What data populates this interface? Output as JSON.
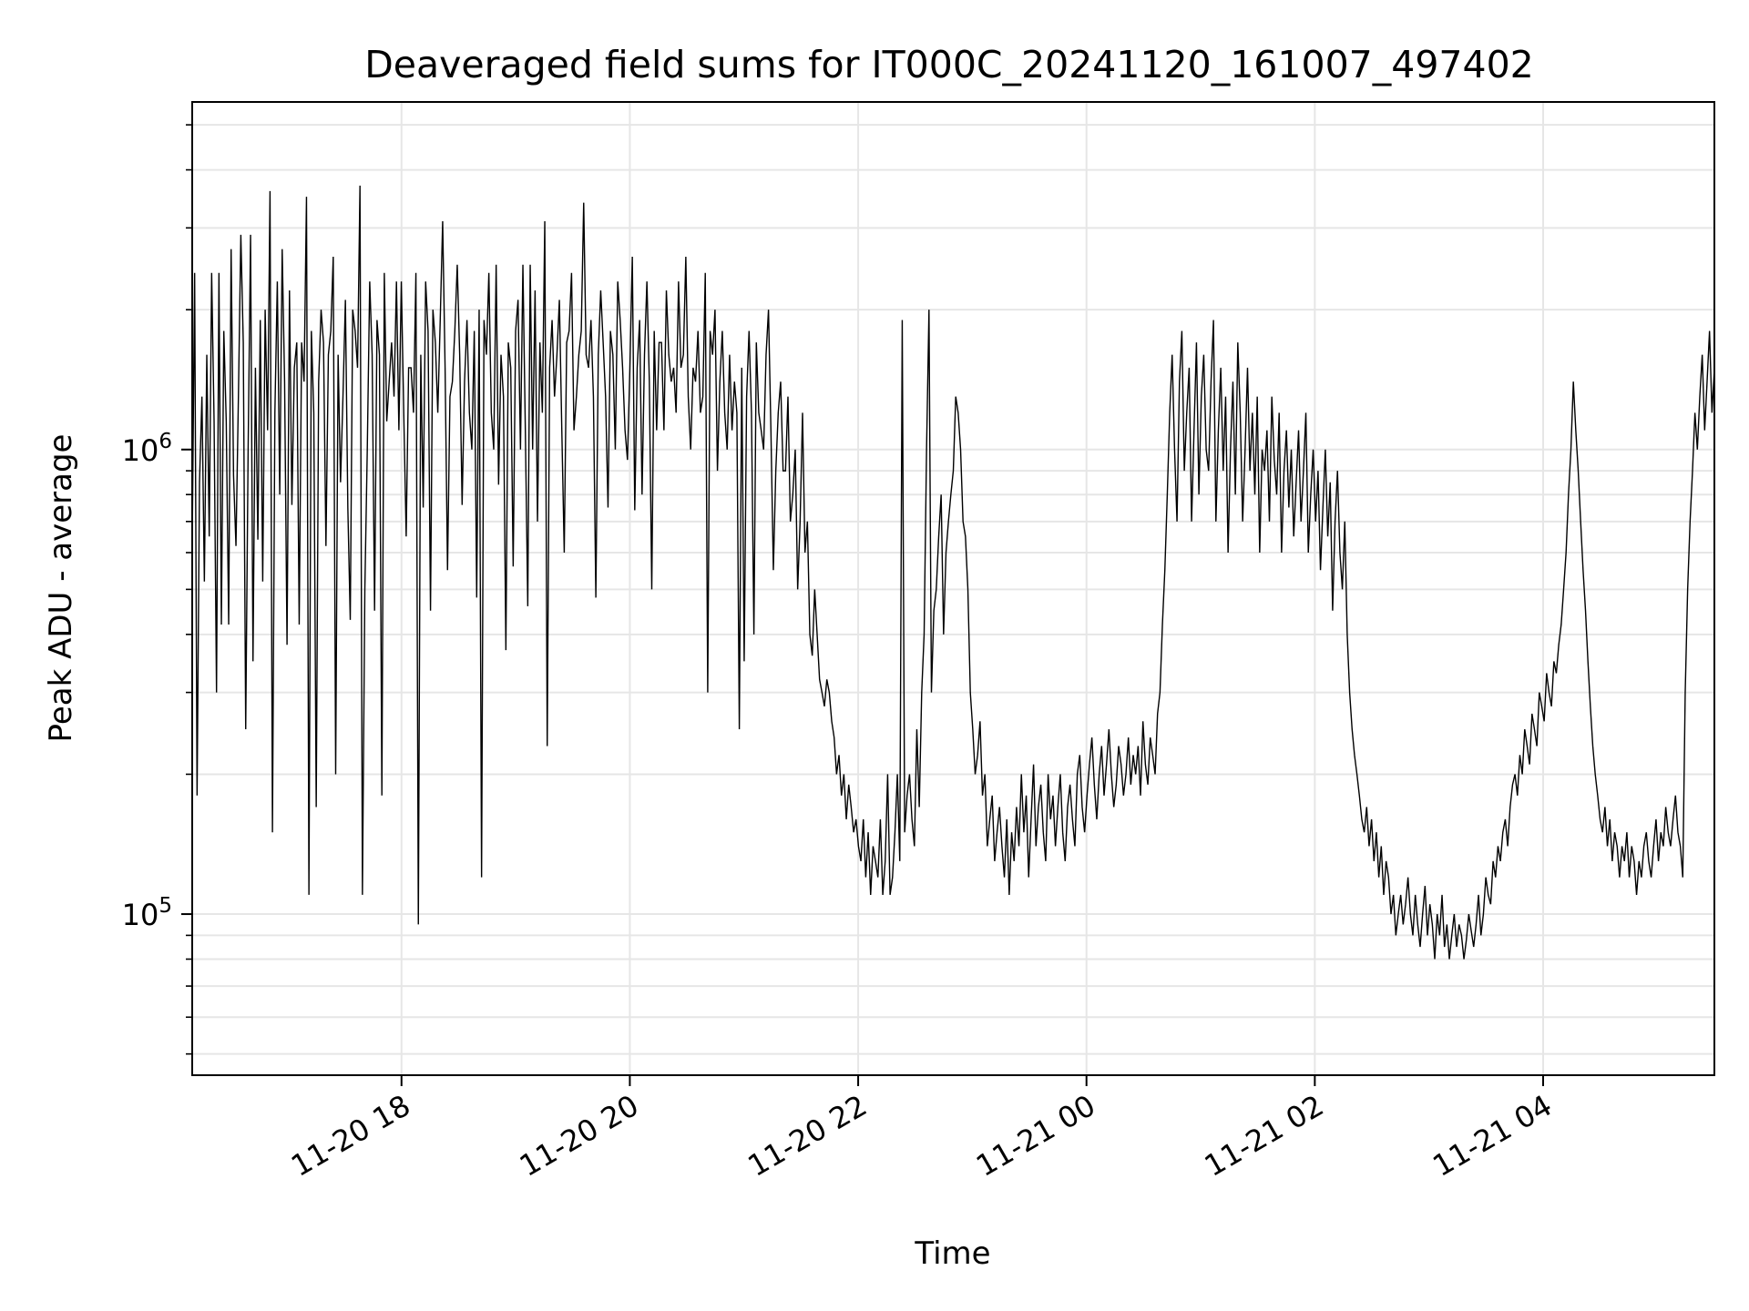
{
  "chart_data": {
    "type": "line",
    "title": "Deaveraged field sums for IT000C_20241120_161007_497402",
    "xlabel": "Time",
    "ylabel": "Peak ADU - average",
    "yscale": "log",
    "grid": true,
    "line_color": "#000000",
    "grid_color": "#e6e6e6",
    "xlim": [
      "2024-11-20 16:10",
      "2024-11-21 05:30"
    ],
    "ylim": [
      45000,
      5600000
    ],
    "x_ticks": [
      {
        "value": "2024-11-20 18:00",
        "label": "11-20 18"
      },
      {
        "value": "2024-11-20 20:00",
        "label": "11-20 20"
      },
      {
        "value": "2024-11-20 22:00",
        "label": "11-20 22"
      },
      {
        "value": "2024-11-21 00:00",
        "label": "11-21 00"
      },
      {
        "value": "2024-11-21 02:00",
        "label": "11-21 02"
      },
      {
        "value": "2024-11-21 04:00",
        "label": "11-21 04"
      }
    ],
    "y_ticks": [
      {
        "value": 100000,
        "base": "10",
        "exp": "5"
      },
      {
        "value": 1000000,
        "base": "10",
        "exp": "6"
      }
    ],
    "series": [
      {
        "x_start": "2024-11-20 16:10",
        "x_end": "2024-11-21 05:30",
        "values": [
          620000,
          2400000,
          180000,
          850000,
          1300000,
          520000,
          1600000,
          650000,
          2400000,
          1150000,
          300000,
          2400000,
          420000,
          1800000,
          1150000,
          420000,
          2700000,
          880000,
          620000,
          1300000,
          2900000,
          1700000,
          250000,
          1000000,
          2900000,
          350000,
          1500000,
          640000,
          1900000,
          520000,
          2000000,
          1100000,
          3600000,
          150000,
          1200000,
          2300000,
          800000,
          2700000,
          1400000,
          380000,
          2200000,
          760000,
          1500000,
          1700000,
          420000,
          1700000,
          1400000,
          3500000,
          110000,
          1800000,
          1200000,
          170000,
          1400000,
          2000000,
          1700000,
          620000,
          1600000,
          1800000,
          2600000,
          200000,
          1600000,
          850000,
          1300000,
          2100000,
          750000,
          430000,
          2000000,
          1800000,
          1500000,
          3700000,
          110000,
          500000,
          1000000,
          2300000,
          1600000,
          450000,
          1900000,
          1600000,
          180000,
          2400000,
          1150000,
          1400000,
          1700000,
          1300000,
          2300000,
          1100000,
          2300000,
          1200000,
          650000,
          1500000,
          1500000,
          1200000,
          2400000,
          95000,
          1600000,
          750000,
          2300000,
          1800000,
          450000,
          2000000,
          1700000,
          1200000,
          1900000,
          3100000,
          1500000,
          550000,
          1300000,
          1400000,
          1800000,
          2500000,
          1600000,
          760000,
          1400000,
          1900000,
          1200000,
          1000000,
          1800000,
          480000,
          2000000,
          120000,
          1900000,
          1600000,
          2400000,
          1200000,
          1000000,
          2500000,
          840000,
          1600000,
          1300000,
          370000,
          1700000,
          1500000,
          560000,
          1800000,
          2100000,
          1000000,
          2500000,
          1100000,
          460000,
          2500000,
          1000000,
          2200000,
          700000,
          1700000,
          1200000,
          3100000,
          230000,
          1500000,
          1900000,
          1300000,
          1600000,
          2100000,
          1100000,
          600000,
          1700000,
          1800000,
          2400000,
          1100000,
          1300000,
          1600000,
          1800000,
          3400000,
          1600000,
          1500000,
          1900000,
          1300000,
          480000,
          1600000,
          2200000,
          1700000,
          1300000,
          750000,
          1800000,
          1600000,
          1000000,
          2300000,
          1900000,
          1500000,
          1100000,
          950000,
          1500000,
          2600000,
          740000,
          1500000,
          1900000,
          800000,
          1600000,
          2300000,
          1400000,
          500000,
          1800000,
          1100000,
          1700000,
          1700000,
          1100000,
          2200000,
          1600000,
          1400000,
          1500000,
          1200000,
          2300000,
          1500000,
          1600000,
          2600000,
          1300000,
          1000000,
          1500000,
          1400000,
          1800000,
          1200000,
          1300000,
          2400000,
          300000,
          1800000,
          1600000,
          2000000,
          900000,
          1400000,
          1800000,
          1200000,
          1000000,
          1600000,
          1100000,
          1400000,
          1200000,
          250000,
          1500000,
          350000,
          1300000,
          1800000,
          1200000,
          400000,
          1700000,
          1200000,
          1100000,
          1000000,
          1600000,
          2000000,
          1100000,
          550000,
          900000,
          1200000,
          1400000,
          900000,
          900000,
          1300000,
          700000,
          800000,
          1000000,
          500000,
          700000,
          1200000,
          600000,
          700000,
          400000,
          360000,
          500000,
          400000,
          320000,
          300000,
          280000,
          320000,
          300000,
          260000,
          240000,
          200000,
          220000,
          180000,
          200000,
          160000,
          190000,
          170000,
          150000,
          160000,
          140000,
          130000,
          160000,
          120000,
          150000,
          110000,
          140000,
          130000,
          120000,
          160000,
          110000,
          130000,
          200000,
          110000,
          120000,
          150000,
          200000,
          130000,
          1900000,
          150000,
          180000,
          200000,
          160000,
          140000,
          250000,
          170000,
          300000,
          400000,
          1000000,
          2000000,
          300000,
          450000,
          500000,
          650000,
          800000,
          400000,
          600000,
          700000,
          800000,
          900000,
          1300000,
          1200000,
          1000000,
          700000,
          650000,
          500000,
          300000,
          250000,
          200000,
          220000,
          260000,
          180000,
          200000,
          140000,
          160000,
          180000,
          130000,
          150000,
          170000,
          140000,
          120000,
          160000,
          110000,
          150000,
          130000,
          170000,
          140000,
          200000,
          150000,
          180000,
          120000,
          160000,
          210000,
          140000,
          170000,
          190000,
          150000,
          130000,
          200000,
          160000,
          180000,
          140000,
          170000,
          200000,
          150000,
          130000,
          170000,
          190000,
          160000,
          140000,
          200000,
          220000,
          170000,
          150000,
          180000,
          210000,
          240000,
          190000,
          160000,
          200000,
          230000,
          180000,
          210000,
          250000,
          200000,
          170000,
          190000,
          230000,
          210000,
          180000,
          200000,
          240000,
          190000,
          220000,
          200000,
          230000,
          180000,
          260000,
          210000,
          190000,
          240000,
          220000,
          200000,
          270000,
          300000,
          420000,
          550000,
          800000,
          1200000,
          1600000,
          1000000,
          700000,
          1400000,
          1800000,
          900000,
          1200000,
          1500000,
          700000,
          1100000,
          1700000,
          800000,
          1300000,
          1600000,
          1000000,
          900000,
          1400000,
          1900000,
          700000,
          1100000,
          1500000,
          900000,
          1300000,
          600000,
          1000000,
          1400000,
          800000,
          1700000,
          1200000,
          700000,
          1000000,
          1500000,
          900000,
          1200000,
          800000,
          1300000,
          600000,
          1000000,
          900000,
          1100000,
          700000,
          1300000,
          950000,
          800000,
          1200000,
          600000,
          900000,
          1100000,
          750000,
          1000000,
          650000,
          850000,
          1100000,
          700000,
          900000,
          1200000,
          600000,
          800000,
          1000000,
          700000,
          900000,
          550000,
          750000,
          1000000,
          650000,
          850000,
          450000,
          700000,
          900000,
          600000,
          500000,
          700000,
          400000,
          300000,
          250000,
          220000,
          200000,
          180000,
          160000,
          150000,
          170000,
          140000,
          160000,
          130000,
          150000,
          120000,
          140000,
          110000,
          130000,
          120000,
          100000,
          110000,
          90000,
          100000,
          110000,
          95000,
          105000,
          120000,
          100000,
          90000,
          110000,
          95000,
          85000,
          100000,
          115000,
          90000,
          105000,
          95000,
          80000,
          100000,
          90000,
          110000,
          85000,
          95000,
          80000,
          90000,
          100000,
          85000,
          95000,
          90000,
          80000,
          88000,
          100000,
          92000,
          85000,
          95000,
          110000,
          90000,
          100000,
          120000,
          110000,
          105000,
          130000,
          120000,
          140000,
          130000,
          150000,
          160000,
          140000,
          170000,
          190000,
          200000,
          180000,
          220000,
          200000,
          250000,
          230000,
          210000,
          270000,
          250000,
          230000,
          300000,
          280000,
          260000,
          330000,
          300000,
          280000,
          350000,
          330000,
          380000,
          420000,
          500000,
          600000,
          800000,
          1000000,
          1400000,
          1100000,
          900000,
          700000,
          550000,
          450000,
          350000,
          280000,
          230000,
          200000,
          180000,
          160000,
          150000,
          170000,
          140000,
          160000,
          130000,
          150000,
          140000,
          120000,
          140000,
          130000,
          150000,
          120000,
          140000,
          130000,
          110000,
          130000,
          120000,
          140000,
          150000,
          130000,
          120000,
          140000,
          160000,
          130000,
          150000,
          140000,
          170000,
          150000,
          140000,
          160000,
          180000,
          150000,
          140000,
          120000,
          300000,
          500000,
          700000,
          900000,
          1200000,
          1000000,
          1300000,
          1600000,
          1100000,
          1400000,
          1800000,
          1200000,
          1500000
        ]
      }
    ]
  }
}
